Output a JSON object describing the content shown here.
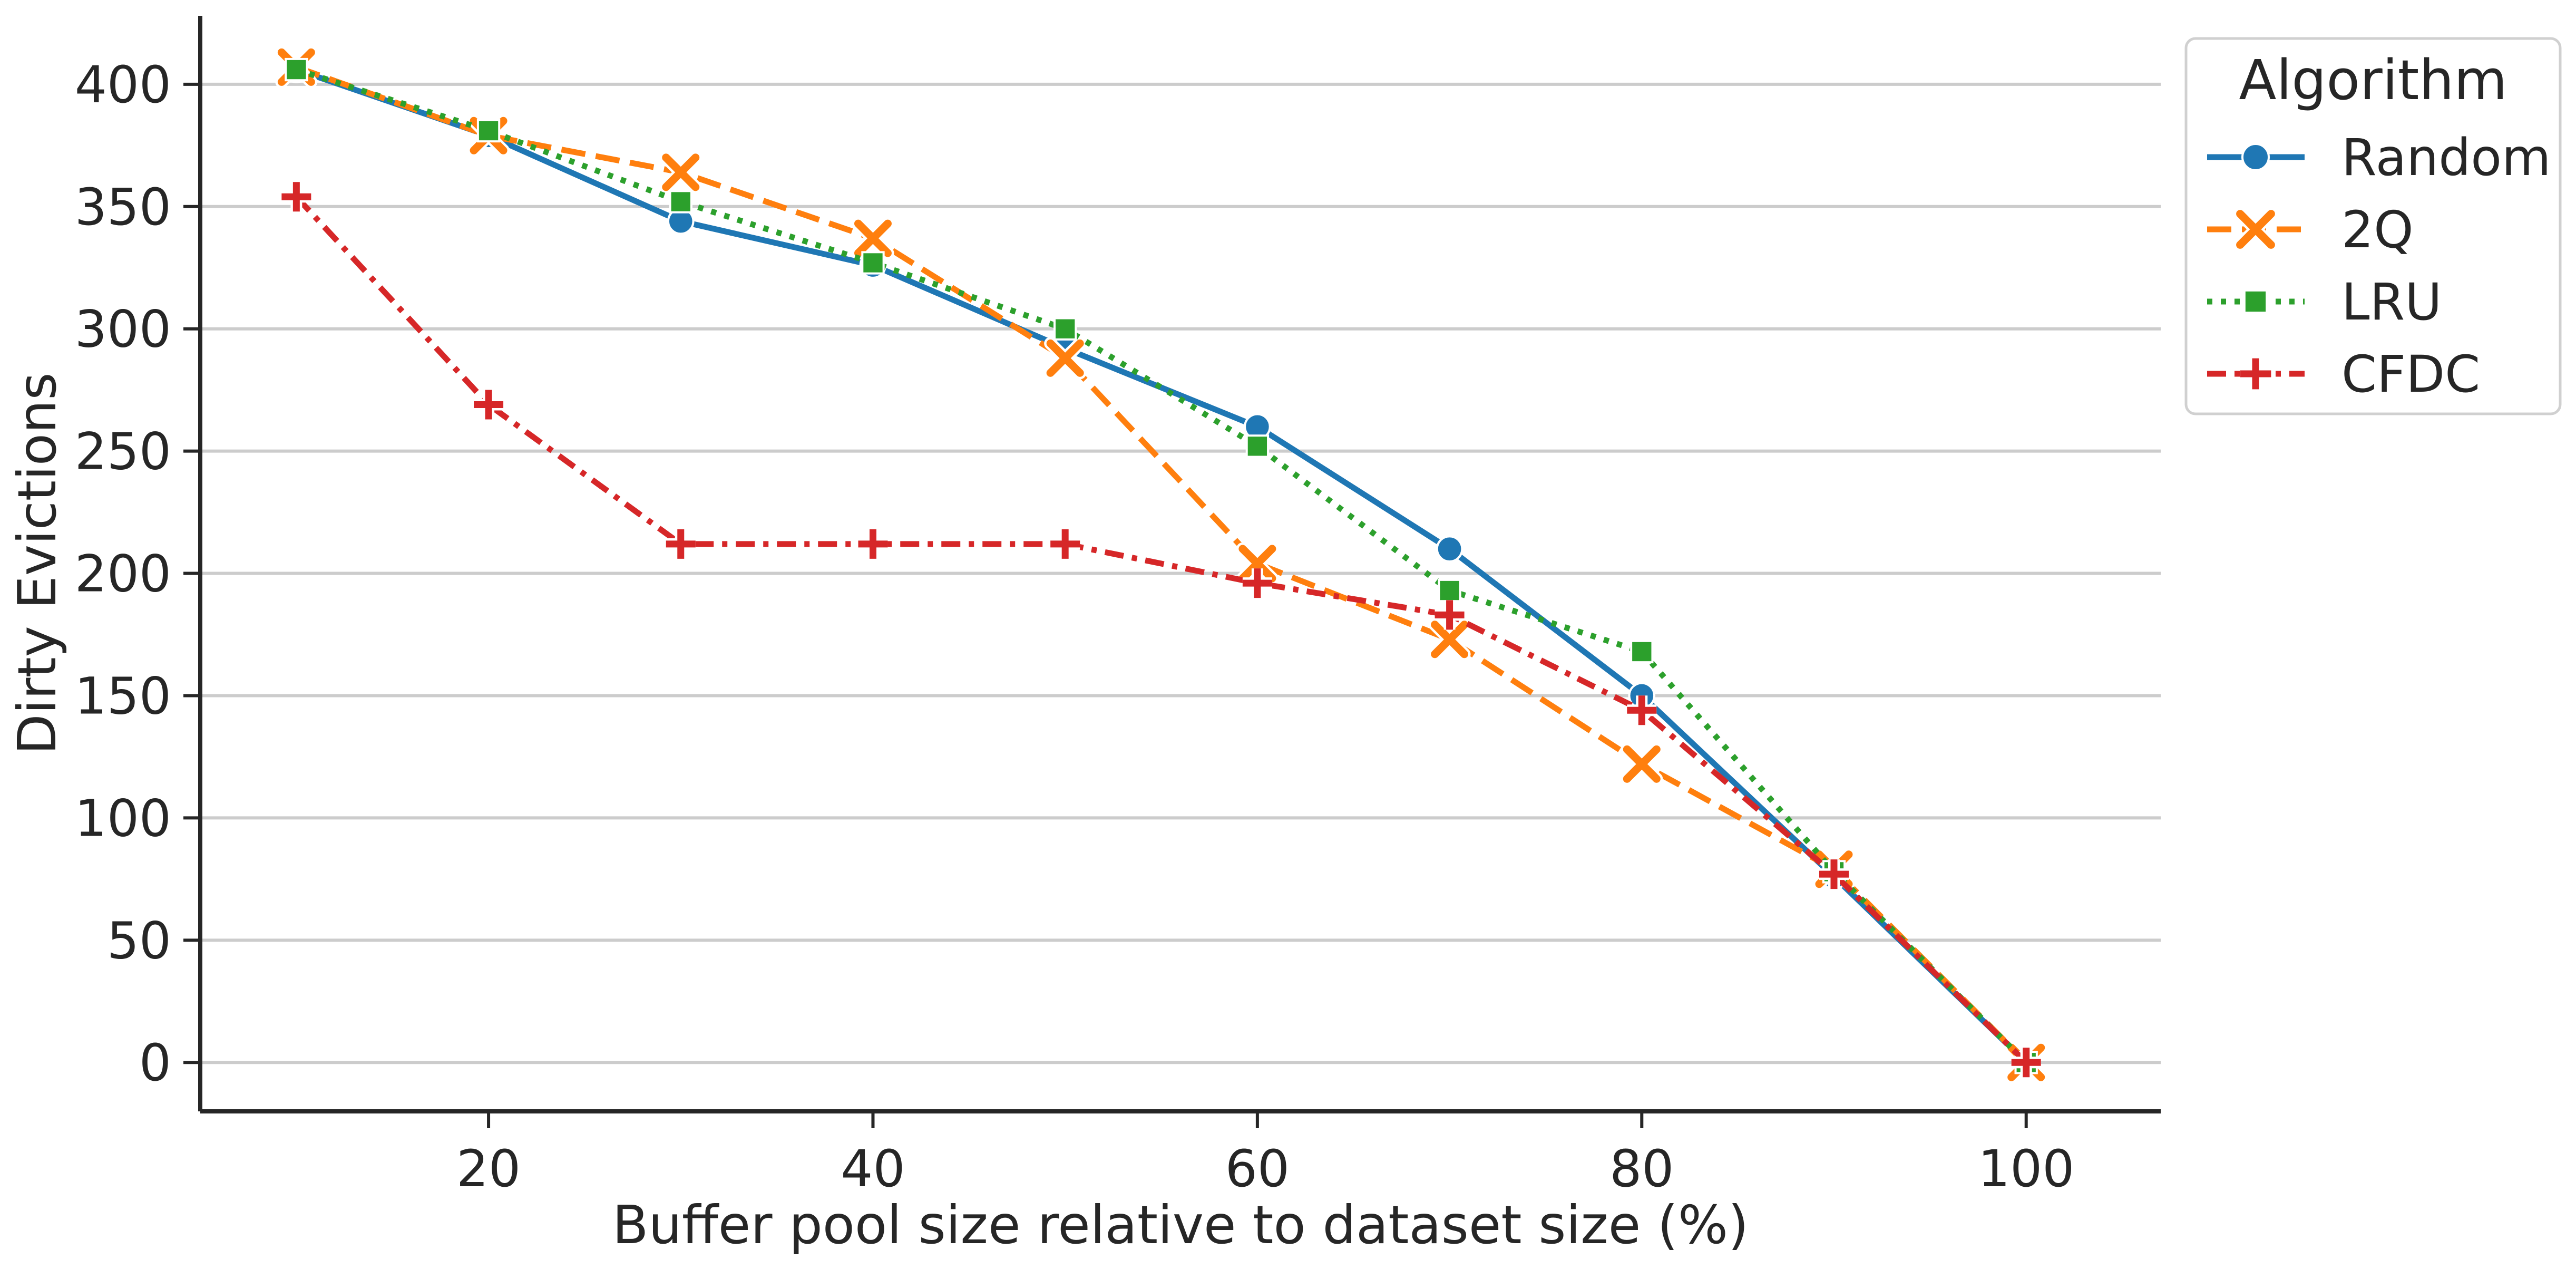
{
  "chart_data": {
    "type": "line",
    "title": "",
    "xlabel": "Buffer pool size relative to dataset size (%)",
    "ylabel": "Dirty Evictions",
    "x": [
      10,
      20,
      30,
      40,
      50,
      60,
      70,
      80,
      90,
      100
    ],
    "xlim": [
      5,
      107
    ],
    "ylim": [
      -20,
      428
    ],
    "xticks": [
      20,
      40,
      60,
      80,
      100
    ],
    "yticks": [
      0,
      50,
      100,
      150,
      200,
      250,
      300,
      350,
      400
    ],
    "grid": "horizontal",
    "legend": {
      "title": "Algorithm",
      "placement": "top-right outside"
    },
    "series": [
      {
        "name": "Random",
        "color": "#1f77b4",
        "dash": "solid",
        "marker": "circle",
        "values": [
          406,
          379,
          344,
          326,
          292,
          260,
          210,
          150,
          76,
          0
        ]
      },
      {
        "name": "2Q",
        "color": "#ff7f0e",
        "dash": "dashed",
        "marker": "x",
        "values": [
          407,
          379,
          364,
          337,
          288,
          204,
          173,
          122,
          79,
          0
        ]
      },
      {
        "name": "LRU",
        "color": "#2ca02c",
        "dash": "dotted",
        "marker": "square",
        "values": [
          406,
          381,
          352,
          327,
          300,
          252,
          193,
          168,
          78,
          0
        ]
      },
      {
        "name": "CFDC",
        "color": "#d62728",
        "dash": "dashdot",
        "marker": "plus",
        "values": [
          354,
          269,
          212,
          212,
          212,
          196,
          183,
          144,
          77,
          0
        ]
      }
    ]
  }
}
